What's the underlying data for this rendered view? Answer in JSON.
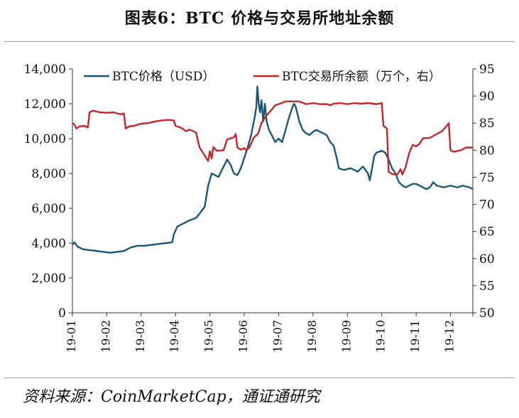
{
  "figure": {
    "title": "图表6：BTC 价格与交易所地址余额",
    "source": "资料来源：CoinMarketCap，通证通研究"
  },
  "chart_data": {
    "type": "line",
    "title": "图表6：BTC 价格与交易所地址余额",
    "x_tick_labels": [
      "19-01",
      "19-02",
      "19-03",
      "19-04",
      "19-05",
      "19-06",
      "19-07",
      "19-08",
      "19-09",
      "19-10",
      "19-11",
      "19-12"
    ],
    "y_left": {
      "min": 0,
      "max": 14000,
      "ticks": [
        0,
        2000,
        4000,
        6000,
        8000,
        10000,
        12000,
        14000
      ],
      "tick_labels": [
        "0",
        "2,000",
        "4,000",
        "6,000",
        "8,000",
        "10,000",
        "12,000",
        "14,000"
      ]
    },
    "y_right": {
      "min": 50,
      "max": 95,
      "ticks": [
        50,
        55,
        60,
        65,
        70,
        75,
        80,
        85,
        90,
        95
      ],
      "tick_labels": [
        "50",
        "55",
        "60",
        "65",
        "70",
        "75",
        "80",
        "85",
        "90",
        "95"
      ]
    },
    "grid": false,
    "legend_position": "top",
    "series": [
      {
        "name": "BTC价格（USD）",
        "axis": "left",
        "color": "#1b5777",
        "points": [
          [
            0.0,
            3900
          ],
          [
            0.06,
            4050
          ],
          [
            0.15,
            3800
          ],
          [
            0.3,
            3650
          ],
          [
            0.5,
            3600
          ],
          [
            0.7,
            3550
          ],
          [
            0.9,
            3500
          ],
          [
            1.1,
            3450
          ],
          [
            1.3,
            3500
          ],
          [
            1.5,
            3550
          ],
          [
            1.7,
            3750
          ],
          [
            1.9,
            3850
          ],
          [
            2.1,
            3850
          ],
          [
            2.3,
            3900
          ],
          [
            2.5,
            3950
          ],
          [
            2.7,
            4000
          ],
          [
            2.9,
            4050
          ],
          [
            2.95,
            4500
          ],
          [
            3.05,
            4950
          ],
          [
            3.2,
            5100
          ],
          [
            3.4,
            5300
          ],
          [
            3.6,
            5450
          ],
          [
            3.7,
            5700
          ],
          [
            3.85,
            6100
          ],
          [
            3.95,
            7300
          ],
          [
            4.05,
            8000
          ],
          [
            4.15,
            7900
          ],
          [
            4.25,
            7800
          ],
          [
            4.4,
            8400
          ],
          [
            4.5,
            8800
          ],
          [
            4.6,
            8500
          ],
          [
            4.7,
            8000
          ],
          [
            4.8,
            7900
          ],
          [
            4.9,
            8300
          ],
          [
            5.0,
            8900
          ],
          [
            5.1,
            9500
          ],
          [
            5.2,
            10200
          ],
          [
            5.3,
            11200
          ],
          [
            5.35,
            11800
          ],
          [
            5.38,
            13000
          ],
          [
            5.42,
            12000
          ],
          [
            5.46,
            11500
          ],
          [
            5.5,
            12200
          ],
          [
            5.55,
            11000
          ],
          [
            5.6,
            12000
          ],
          [
            5.65,
            11000
          ],
          [
            5.72,
            10500
          ],
          [
            5.8,
            10200
          ],
          [
            5.9,
            9800
          ],
          [
            6.0,
            10000
          ],
          [
            6.1,
            9800
          ],
          [
            6.2,
            10500
          ],
          [
            6.3,
            11200
          ],
          [
            6.4,
            11800
          ],
          [
            6.45,
            12000
          ],
          [
            6.5,
            11800
          ],
          [
            6.55,
            11400
          ],
          [
            6.6,
            11000
          ],
          [
            6.7,
            10500
          ],
          [
            6.8,
            10300
          ],
          [
            6.9,
            10200
          ],
          [
            7.0,
            10400
          ],
          [
            7.1,
            10500
          ],
          [
            7.2,
            10400
          ],
          [
            7.3,
            10300
          ],
          [
            7.4,
            10200
          ],
          [
            7.5,
            9800
          ],
          [
            7.6,
            9600
          ],
          [
            7.7,
            8800
          ],
          [
            7.75,
            8300
          ],
          [
            7.9,
            8200
          ],
          [
            8.1,
            8300
          ],
          [
            8.2,
            8200
          ],
          [
            8.3,
            8100
          ],
          [
            8.45,
            8400
          ],
          [
            8.6,
            8000
          ],
          [
            8.65,
            7600
          ],
          [
            8.7,
            8100
          ],
          [
            8.78,
            9000
          ],
          [
            8.85,
            9200
          ],
          [
            9.0,
            9300
          ],
          [
            9.1,
            9200
          ],
          [
            9.2,
            8800
          ],
          [
            9.3,
            8300
          ],
          [
            9.4,
            8000
          ],
          [
            9.5,
            7500
          ],
          [
            9.6,
            7300
          ],
          [
            9.7,
            7200
          ],
          [
            9.8,
            7300
          ],
          [
            9.9,
            7400
          ],
          [
            10.0,
            7400
          ],
          [
            10.1,
            7300
          ],
          [
            10.2,
            7200
          ],
          [
            10.3,
            7100
          ],
          [
            10.4,
            7200
          ],
          [
            10.5,
            7500
          ],
          [
            10.6,
            7300
          ],
          [
            10.8,
            7200
          ],
          [
            11.0,
            7300
          ],
          [
            11.2,
            7200
          ],
          [
            11.35,
            7300
          ],
          [
            11.55,
            7200
          ],
          [
            11.65,
            7100
          ]
        ]
      },
      {
        "name": "BTC交易所余额（万个，右）",
        "axis": "right",
        "color": "#c0272d",
        "points": [
          [
            0.0,
            85.0
          ],
          [
            0.05,
            84.8
          ],
          [
            0.12,
            84.0
          ],
          [
            0.2,
            84.4
          ],
          [
            0.35,
            84.5
          ],
          [
            0.45,
            84.2
          ],
          [
            0.5,
            87.0
          ],
          [
            0.6,
            87.3
          ],
          [
            0.8,
            87.0
          ],
          [
            1.0,
            86.9
          ],
          [
            1.2,
            87.0
          ],
          [
            1.4,
            86.6
          ],
          [
            1.5,
            86.8
          ],
          [
            1.55,
            84.0
          ],
          [
            1.65,
            84.4
          ],
          [
            1.8,
            84.5
          ],
          [
            2.0,
            84.9
          ],
          [
            2.2,
            85.0
          ],
          [
            2.4,
            85.3
          ],
          [
            2.6,
            85.5
          ],
          [
            2.8,
            85.6
          ],
          [
            2.95,
            85.5
          ],
          [
            3.0,
            84.5
          ],
          [
            3.1,
            84.3
          ],
          [
            3.2,
            84.0
          ],
          [
            3.3,
            83.5
          ],
          [
            3.4,
            83.8
          ],
          [
            3.5,
            83.6
          ],
          [
            3.6,
            83.2
          ],
          [
            3.7,
            80.5
          ],
          [
            3.8,
            79.5
          ],
          [
            3.9,
            78.5
          ],
          [
            3.95,
            78.0
          ],
          [
            4.0,
            79.8
          ],
          [
            4.05,
            78.5
          ],
          [
            4.1,
            80.6
          ],
          [
            4.2,
            79.9
          ],
          [
            4.4,
            80.0
          ],
          [
            4.5,
            82.0
          ],
          [
            4.6,
            82.2
          ],
          [
            4.7,
            82.4
          ],
          [
            4.75,
            83.0
          ],
          [
            4.8,
            80.5
          ],
          [
            4.9,
            80.1
          ],
          [
            5.0,
            80.4
          ],
          [
            5.05,
            80.0
          ],
          [
            5.15,
            80.5
          ],
          [
            5.25,
            82.0
          ],
          [
            5.3,
            82.5
          ],
          [
            5.4,
            83.0
          ],
          [
            5.5,
            85.0
          ],
          [
            5.6,
            86.0
          ],
          [
            5.7,
            86.8
          ],
          [
            5.8,
            87.5
          ],
          [
            5.9,
            88.3
          ],
          [
            6.0,
            88.5
          ],
          [
            6.2,
            89.0
          ],
          [
            6.4,
            89.0
          ],
          [
            6.6,
            89.0
          ],
          [
            6.8,
            88.5
          ],
          [
            7.0,
            88.7
          ],
          [
            7.2,
            88.5
          ],
          [
            7.4,
            88.5
          ],
          [
            7.5,
            88.3
          ],
          [
            7.6,
            88.6
          ],
          [
            7.8,
            88.7
          ],
          [
            8.0,
            88.5
          ],
          [
            8.2,
            88.7
          ],
          [
            8.4,
            88.6
          ],
          [
            8.6,
            88.7
          ],
          [
            8.85,
            88.5
          ],
          [
            9.0,
            88.7
          ],
          [
            9.05,
            84.5
          ],
          [
            9.15,
            84.0
          ],
          [
            9.2,
            76.0
          ],
          [
            9.3,
            75.6
          ],
          [
            9.45,
            75.5
          ],
          [
            9.55,
            76.5
          ],
          [
            9.6,
            75.5
          ],
          [
            9.7,
            77.0
          ],
          [
            9.8,
            79.5
          ],
          [
            9.9,
            81.0
          ],
          [
            10.0,
            80.7
          ],
          [
            10.1,
            81.2
          ],
          [
            10.2,
            82.2
          ],
          [
            10.4,
            82.3
          ],
          [
            10.6,
            83.0
          ],
          [
            10.75,
            83.5
          ],
          [
            10.85,
            84.2
          ],
          [
            10.95,
            85.0
          ],
          [
            11.0,
            80.0
          ],
          [
            11.1,
            79.7
          ],
          [
            11.3,
            80.0
          ],
          [
            11.45,
            80.5
          ],
          [
            11.65,
            80.5
          ]
        ]
      }
    ]
  }
}
